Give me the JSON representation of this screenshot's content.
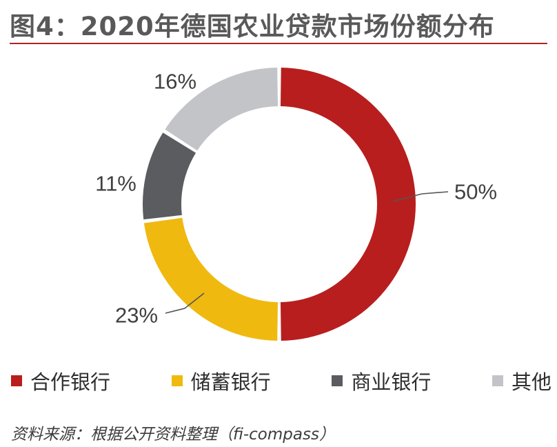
{
  "title": "图4：2020年德国农业贷款市场份额分布",
  "source": "资料来源：根据公开资料整理（fi-compass）",
  "chart_data": {
    "type": "pie",
    "donut": true,
    "categories": [
      "合作银行",
      "储蓄银行",
      "商业银行",
      "其他"
    ],
    "values": [
      50,
      23,
      11,
      16
    ],
    "value_labels": [
      "50%",
      "23%",
      "11%",
      "16%"
    ],
    "colors": [
      "#b81e1e",
      "#f0b90f",
      "#5a5c60",
      "#c2c4c8"
    ],
    "start": "12 o'clock, clockwise",
    "legend_position": "bottom"
  }
}
